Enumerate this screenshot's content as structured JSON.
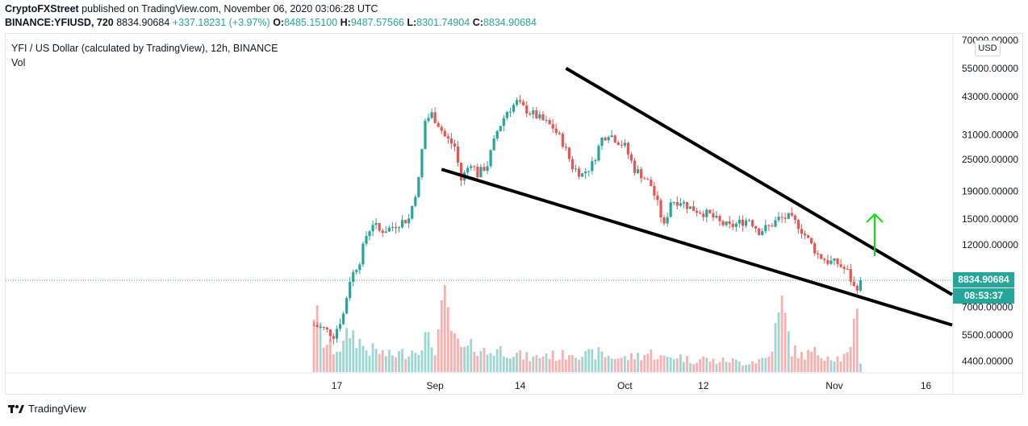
{
  "header": {
    "publisher": "CryptoFXStreet",
    "published_text": " published on TradingView.com, November 06, 2020 03:06:28 UTC"
  },
  "ohlc": {
    "symbol": "BINANCE:YFIUSD, 720",
    "last": "8834.90684",
    "change": "+337.18231 (+3.97%)",
    "o_label": "O:",
    "o": "8485.15100",
    "h_label": "H:",
    "h": "9487.57566",
    "l_label": "L:",
    "l": "8301.74904",
    "c_label": "C:",
    "c": "8834.90684"
  },
  "legend": {
    "title": "YFI / US Dollar (calculated by TradingView), 12h, BINANCE",
    "vol_label": "Vol"
  },
  "price_axis": {
    "currency": "USD",
    "current_price": "8834.90684",
    "countdown": "08:53:37"
  },
  "footer": {
    "brand": "TradingView"
  },
  "colors": {
    "up": "#26a69a",
    "down": "#ef5350",
    "arrow": "#00e600",
    "trendline": "#000000"
  },
  "chart_data": {
    "type": "candlestick",
    "title": "YFI / US Dollar (calculated by TradingView), 12h, BINANCE",
    "yscale": "log",
    "ylim": [
      4000,
      72000
    ],
    "y_ticks": [
      "70000.00000",
      "55000.00000",
      "43000.00000",
      "31000.00000",
      "25000.00000",
      "19000.00000",
      "15000.00000",
      "12000.00000",
      "7000.00000",
      "5500.00000",
      "4400.00000"
    ],
    "y_tick_values": [
      70000,
      55000,
      43000,
      31000,
      25000,
      19000,
      15000,
      12000,
      7000,
      5500,
      4400
    ],
    "x_ticks": [
      "17",
      "Sep",
      "14",
      "Oct",
      "12",
      "Nov",
      "16"
    ],
    "x_tick_days": [
      17,
      32,
      45,
      61,
      73,
      93,
      107
    ],
    "day_offset_start": 13,
    "day_offset_end": 111,
    "close_series": [
      [
        13.5,
        6000
      ],
      [
        15,
        5800
      ],
      [
        16.5,
        5500
      ],
      [
        18,
        6600
      ],
      [
        19,
        8900
      ],
      [
        20.5,
        10500
      ],
      [
        21.5,
        13000
      ],
      [
        22.5,
        14500
      ],
      [
        23.5,
        13500
      ],
      [
        25,
        13800
      ],
      [
        26.5,
        14500
      ],
      [
        28,
        15000
      ],
      [
        29.5,
        21000
      ],
      [
        30.5,
        35000
      ],
      [
        31.5,
        37000
      ],
      [
        32.5,
        34000
      ],
      [
        33.5,
        30500
      ],
      [
        35,
        28000
      ],
      [
        36,
        21000
      ],
      [
        37.5,
        24500
      ],
      [
        38.5,
        22000
      ],
      [
        40,
        24000
      ],
      [
        41.5,
        32000
      ],
      [
        43,
        38000
      ],
      [
        44.5,
        41000
      ],
      [
        45.5,
        39000
      ],
      [
        47,
        37000
      ],
      [
        48.5,
        35000
      ],
      [
        50,
        33000
      ],
      [
        51.5,
        29000
      ],
      [
        53,
        23500
      ],
      [
        54.5,
        22000
      ],
      [
        56,
        24000
      ],
      [
        57.5,
        30000
      ],
      [
        58.5,
        31500
      ],
      [
        59.5,
        30000
      ],
      [
        61,
        28000
      ],
      [
        62.5,
        23000
      ],
      [
        63.5,
        22000
      ],
      [
        65,
        20000
      ],
      [
        66,
        17000
      ],
      [
        67,
        14000
      ],
      [
        68,
        17500
      ],
      [
        69.5,
        17500
      ],
      [
        71,
        16500
      ],
      [
        72.5,
        16000
      ],
      [
        74,
        15500
      ],
      [
        75.5,
        14500
      ],
      [
        77,
        14000
      ],
      [
        78.5,
        14500
      ],
      [
        80,
        15000
      ],
      [
        81.5,
        13500
      ],
      [
        83,
        14000
      ],
      [
        84.5,
        15000
      ],
      [
        86,
        15200
      ],
      [
        87.5,
        14200
      ],
      [
        89,
        12500
      ],
      [
        90.5,
        11000
      ],
      [
        92,
        10400
      ],
      [
        93.5,
        10200
      ],
      [
        95,
        9500
      ],
      [
        96,
        8300
      ],
      [
        96.5,
        8400
      ],
      [
        97,
        8834.90684
      ]
    ],
    "volume_series": [
      [
        13.5,
        85
      ],
      [
        15,
        40
      ],
      [
        16.5,
        30
      ],
      [
        18,
        35
      ],
      [
        19,
        55
      ],
      [
        20.5,
        40
      ],
      [
        21.5,
        30
      ],
      [
        23,
        28
      ],
      [
        25,
        22
      ],
      [
        27,
        25
      ],
      [
        29,
        30
      ],
      [
        30.5,
        45
      ],
      [
        32,
        32
      ],
      [
        33.5,
        95
      ],
      [
        35,
        40
      ],
      [
        36.5,
        28
      ],
      [
        38,
        35
      ],
      [
        40,
        25
      ],
      [
        41.5,
        30
      ],
      [
        43,
        28
      ],
      [
        45,
        22
      ],
      [
        47,
        18
      ],
      [
        49,
        24
      ],
      [
        51,
        20
      ],
      [
        53,
        28
      ],
      [
        55,
        22
      ],
      [
        57,
        25
      ],
      [
        59,
        20
      ],
      [
        61,
        18
      ],
      [
        63,
        22
      ],
      [
        65,
        25
      ],
      [
        67,
        18
      ],
      [
        69,
        22
      ],
      [
        71,
        15
      ],
      [
        73,
        18
      ],
      [
        75,
        14
      ],
      [
        77,
        16
      ],
      [
        79,
        12
      ],
      [
        81,
        15
      ],
      [
        83,
        20
      ],
      [
        85,
        88
      ],
      [
        86.5,
        30
      ],
      [
        88,
        22
      ],
      [
        90,
        26
      ],
      [
        92,
        22
      ],
      [
        94,
        18
      ],
      [
        95.5,
        25
      ],
      [
        96.5,
        95
      ],
      [
        97,
        15
      ]
    ],
    "trendlines": [
      {
        "name": "upper",
        "p1": [
          52,
          55000
        ],
        "p2": [
          111,
          7800
        ]
      },
      {
        "name": "lower",
        "p1": [
          33,
          23000
        ],
        "p2": [
          111,
          6000
        ]
      }
    ]
  }
}
